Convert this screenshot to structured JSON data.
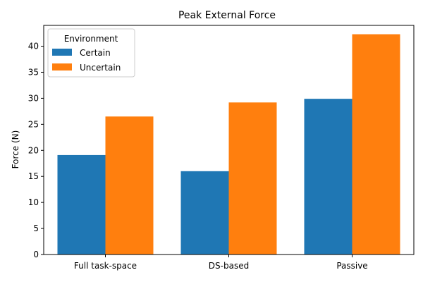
{
  "chart_data": {
    "type": "bar",
    "title": "Peak External Force",
    "xlabel": "",
    "ylabel": "Force (N)",
    "categories": [
      "Full task-space",
      "DS-based",
      "Passive"
    ],
    "series": [
      {
        "name": "Certain",
        "values": [
          19.1,
          16.0,
          29.9
        ],
        "color": "#1f77b4"
      },
      {
        "name": "Uncertain",
        "values": [
          26.5,
          29.2,
          42.3
        ],
        "color": "#ff7f0e"
      }
    ],
    "ylim": [
      0,
      44
    ],
    "yticks": [
      0,
      5,
      10,
      15,
      20,
      25,
      30,
      35,
      40
    ],
    "legend": {
      "title": "Environment",
      "placement": "top-left"
    },
    "grid": false
  }
}
